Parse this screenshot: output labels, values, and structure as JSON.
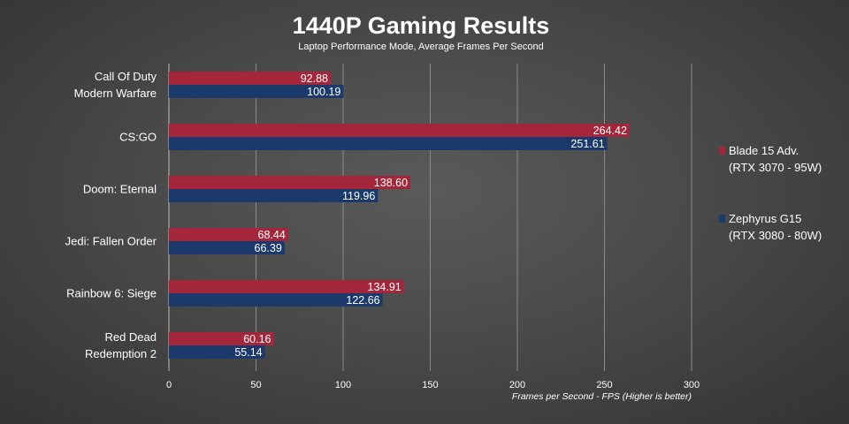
{
  "chart_data": {
    "type": "bar",
    "orientation": "horizontal",
    "title": "1440P Gaming Results",
    "subtitle": "Laptop Performance Mode, Average Frames Per Second",
    "xlabel": "Frames per Second - FPS (Higher is better)",
    "ylabel": "",
    "xlim": [
      0,
      300
    ],
    "xticks": [
      0,
      50,
      100,
      150,
      200,
      250,
      300
    ],
    "grid": true,
    "legend_position": "right",
    "categories": [
      [
        "Call Of Duty",
        "Modern Warfare"
      ],
      [
        "CS:GO"
      ],
      [
        "Doom: Eternal"
      ],
      [
        "Jedi: Fallen Order"
      ],
      [
        "Rainbow 6: Siege"
      ],
      [
        "Red Dead",
        "Redemption 2"
      ]
    ],
    "series": [
      {
        "name": [
          "Blade 15 Adv.",
          "(RTX 3070 - 95W)"
        ],
        "color": "#a4263a",
        "values": [
          92.88,
          264.42,
          138.6,
          68.44,
          134.91,
          60.16
        ],
        "labels": [
          "92.88",
          "264.42",
          "138.60",
          "68.44",
          "134.91",
          "60.16"
        ]
      },
      {
        "name": [
          "Zephyrus G15",
          "(RTX 3080 - 80W)"
        ],
        "color": "#1b3a6b",
        "values": [
          100.19,
          251.61,
          119.96,
          66.39,
          122.66,
          55.14
        ],
        "labels": [
          "100.19",
          "251.61",
          "119.96",
          "66.39",
          "122.66",
          "55.14"
        ]
      }
    ]
  }
}
